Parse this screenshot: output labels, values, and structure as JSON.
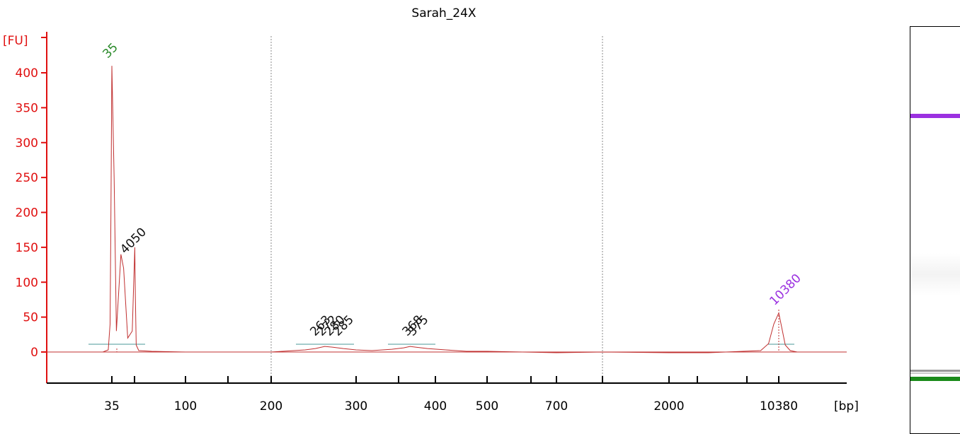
{
  "chart_data": {
    "type": "line",
    "title": "Sarah_24X",
    "ylabel": "[FU]",
    "xlabel": "[bp]",
    "ylim": [
      -45,
      415
    ],
    "y_ticks": [
      0,
      50,
      100,
      150,
      200,
      250,
      300,
      350,
      400
    ],
    "x_tick_labels": [
      "35",
      "100",
      "200",
      "300",
      "400",
      "500",
      "700",
      "2000",
      "10380"
    ],
    "grid_lines_at": [
      "200",
      "1000"
    ],
    "series": [
      {
        "color": "#c03030",
        "points": [
          [
            20,
            0
          ],
          [
            30,
            0
          ],
          [
            33,
            3
          ],
          [
            34,
            40
          ],
          [
            34.5,
            200
          ],
          [
            35,
            410
          ],
          [
            35.5,
            250
          ],
          [
            36,
            30
          ],
          [
            37,
            140
          ],
          [
            37.6,
            120
          ],
          [
            38.5,
            20
          ],
          [
            39.5,
            30
          ],
          [
            40.3,
            150
          ],
          [
            41,
            80
          ],
          [
            42,
            10
          ],
          [
            45,
            2
          ],
          [
            60,
            1
          ],
          [
            100,
            0
          ],
          [
            150,
            0
          ],
          [
            200,
            0
          ],
          [
            240,
            3
          ],
          [
            252,
            5
          ],
          [
            263,
            8
          ],
          [
            272,
            7
          ],
          [
            285,
            5
          ],
          [
            300,
            3
          ],
          [
            320,
            2
          ],
          [
            345,
            4
          ],
          [
            360,
            6
          ],
          [
            368,
            8
          ],
          [
            375,
            7
          ],
          [
            390,
            5
          ],
          [
            420,
            3
          ],
          [
            460,
            1
          ],
          [
            500,
            1
          ],
          [
            700,
            -1
          ],
          [
            1000,
            0
          ],
          [
            2000,
            -1
          ],
          [
            5000,
            -1
          ],
          [
            9000,
            2
          ],
          [
            9600,
            12
          ],
          [
            10000,
            40
          ],
          [
            10380,
            56
          ],
          [
            10800,
            35
          ],
          [
            11300,
            10
          ],
          [
            12000,
            2
          ],
          [
            13000,
            0
          ],
          [
            20000,
            0
          ]
        ]
      }
    ],
    "peak_labels": [
      {
        "text": "35",
        "x": 35,
        "y": 410,
        "color": "#2a8a2a"
      },
      {
        "text": "4050",
        "x": 37,
        "y": 140,
        "color": "#111111"
      },
      {
        "text": "263",
        "x": 255,
        "y": 8,
        "color": "#111111"
      },
      {
        "text": "272",
        "x": 263,
        "y": 8,
        "color": "#111111"
      },
      {
        "text": "280",
        "x": 272,
        "y": 8,
        "color": "#111111"
      },
      {
        "text": "285",
        "x": 282,
        "y": 8,
        "color": "#111111"
      },
      {
        "text": "368",
        "x": 368,
        "y": 8,
        "color": "#111111"
      },
      {
        "text": "375",
        "x": 375,
        "y": 8,
        "color": "#111111"
      },
      {
        "text": "10380",
        "x": 10380,
        "y": 56,
        "color": "#9b30e0"
      }
    ]
  },
  "gel_bands": [
    {
      "position": "upper-marker",
      "color": "#9b30e0"
    },
    {
      "position": "lower-marker",
      "color": "#1a8a1a"
    }
  ]
}
